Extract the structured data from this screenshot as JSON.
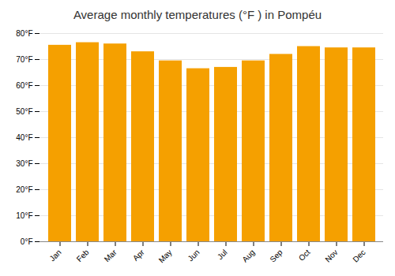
{
  "chart_data": {
    "type": "bar",
    "title": "Average monthly temperatures (°F ) in Pompéu",
    "categories": [
      "Jan",
      "Feb",
      "Mar",
      "Apr",
      "May",
      "Jun",
      "Jul",
      "Aug",
      "Sep",
      "Oct",
      "Nov",
      "Dec"
    ],
    "values": [
      75.5,
      76.5,
      76.0,
      73.0,
      69.5,
      66.5,
      67.0,
      69.5,
      72.0,
      75.0,
      74.5,
      74.5
    ],
    "color": "#F5A000",
    "ylim": [
      0,
      80
    ],
    "yticks": [
      {
        "value": 0,
        "label": "0°F"
      },
      {
        "value": 10,
        "label": "10°F"
      },
      {
        "value": 20,
        "label": "20°F"
      },
      {
        "value": 30,
        "label": "30°F"
      },
      {
        "value": 40,
        "label": "40°F"
      },
      {
        "value": 50,
        "label": "50°F"
      },
      {
        "value": 60,
        "label": "60°F"
      },
      {
        "value": 70,
        "label": "70°F"
      },
      {
        "value": 80,
        "label": "80°F"
      }
    ],
    "grid": true
  }
}
